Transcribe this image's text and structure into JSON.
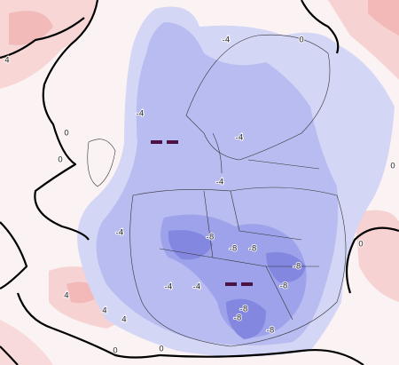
{
  "contour_labels": [
    "-4",
    "0",
    "4",
    "0",
    "0",
    "-4",
    "-4",
    "-4",
    "-4",
    "-8",
    "-8",
    "-8",
    "-8",
    "-8",
    "-4",
    "-4",
    "-8",
    "-8",
    "-8",
    "0",
    "0",
    "4",
    "4",
    "4",
    "0",
    "0"
  ]
}
